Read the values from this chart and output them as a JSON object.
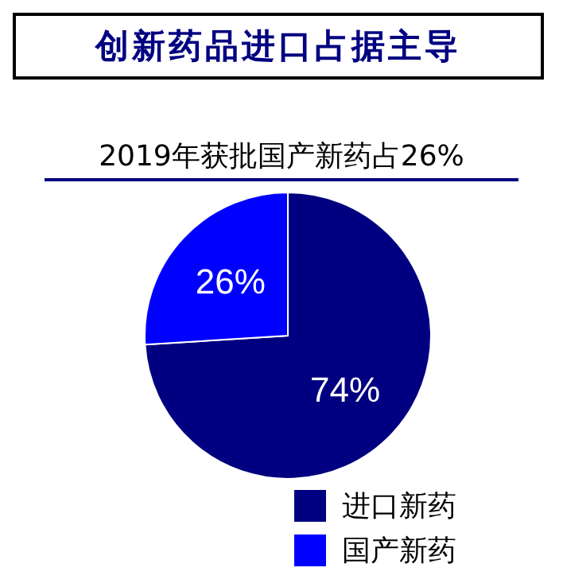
{
  "chart_data": {
    "type": "pie",
    "title": "创新药品进口占据主导",
    "subtitle": "2019年获批国产新药占26%",
    "categories": [
      "进口新药",
      "国产新药"
    ],
    "values": [
      74,
      26
    ],
    "colors": [
      "#000080",
      "#0000ff"
    ],
    "value_labels": [
      "74%",
      "26%"
    ],
    "legend": "bottom"
  }
}
